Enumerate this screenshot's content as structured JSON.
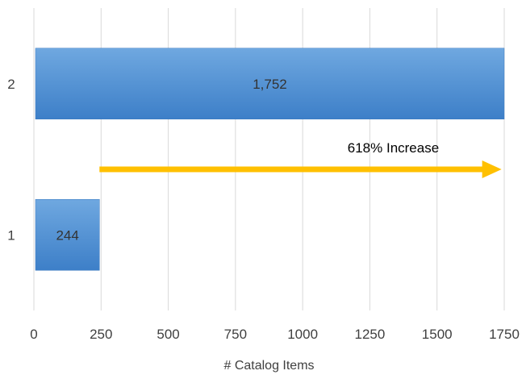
{
  "chart_data": {
    "type": "bar",
    "orientation": "horizontal",
    "categories": [
      "1",
      "2"
    ],
    "values": [
      244,
      1752
    ],
    "data_labels": [
      "244",
      "1,752"
    ],
    "xlabel": "# Catalog Items",
    "ylabel": "",
    "xlim": [
      0,
      1750
    ],
    "x_ticks": [
      0,
      250,
      500,
      750,
      1000,
      1250,
      1500,
      1750
    ],
    "x_tick_labels": [
      "0",
      "250",
      "500",
      "750",
      "1000",
      "1250",
      "1500",
      "1750"
    ],
    "grid": "vertical",
    "annotation": {
      "text": "618% Increase",
      "arrow_from": 244,
      "arrow_to": 1752
    },
    "colors": {
      "bar_top": "#6fa8e0",
      "bar_bottom": "#3d7fc8",
      "arrow": "#ffc000",
      "grid": "#d9d9d9"
    }
  }
}
